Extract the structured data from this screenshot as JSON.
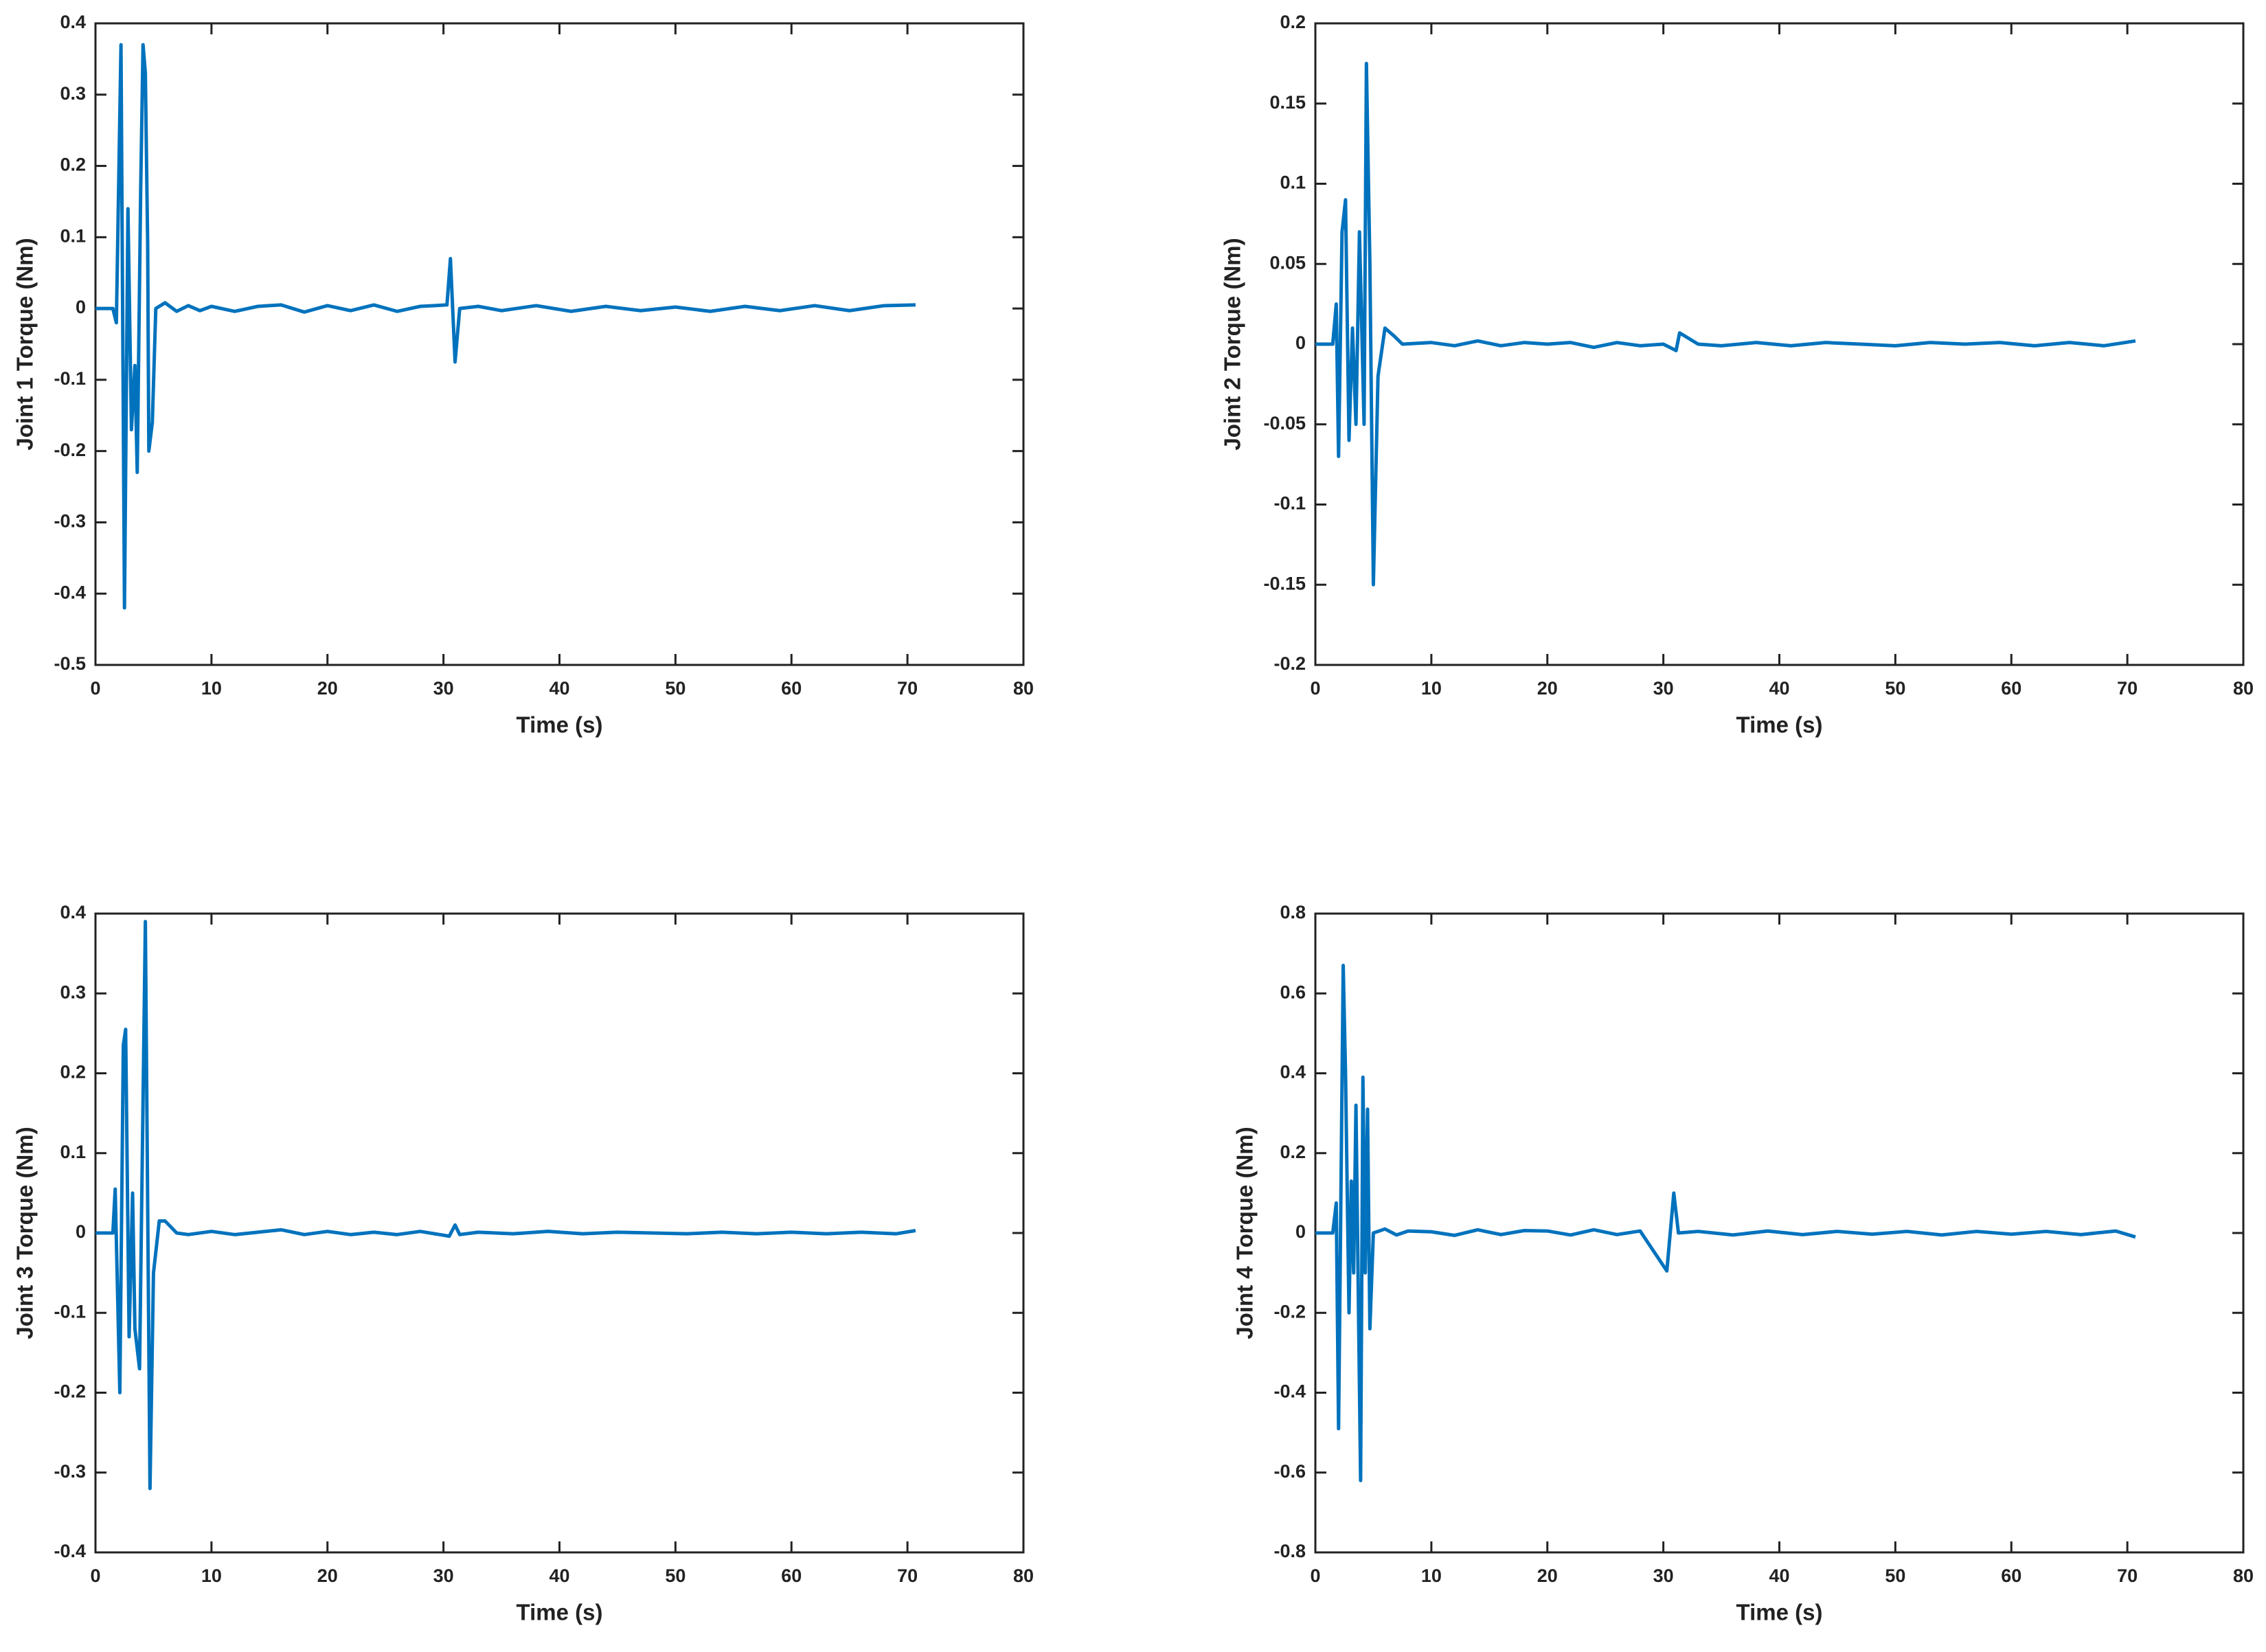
{
  "chart_data": [
    {
      "type": "line",
      "ylabel": "Joint 1 Torque (Nm)",
      "xlabel": "Time (s)",
      "color": "#0072bd",
      "xlim": [
        0,
        80
      ],
      "xticks": [
        0,
        10,
        20,
        30,
        40,
        50,
        60,
        70,
        80
      ],
      "ylim": [
        -0.5,
        0.4
      ],
      "yticks": [
        -0.5,
        -0.4,
        -0.3,
        -0.2,
        -0.1,
        0,
        0.1,
        0.2,
        0.3,
        0.4
      ],
      "x": [
        0,
        1.5,
        1.8,
        2.2,
        2.5,
        2.8,
        3.1,
        3.4,
        3.6,
        3.9,
        4.1,
        4.3,
        4.5,
        4.6,
        4.9,
        5.2,
        6,
        7,
        8,
        9,
        10,
        12,
        14,
        16,
        18,
        20,
        22,
        24,
        26,
        28,
        30.3,
        30.6,
        31,
        31.4,
        33,
        35,
        38,
        41,
        44,
        47,
        50,
        53,
        56,
        59,
        62,
        65,
        68,
        70.7
      ],
      "values": [
        0,
        0,
        -0.02,
        0.37,
        -0.42,
        0.14,
        -0.17,
        -0.08,
        -0.23,
        0.17,
        0.37,
        0.33,
        0.09,
        -0.2,
        -0.16,
        0,
        0.008,
        -0.004,
        0.004,
        -0.003,
        0.003,
        -0.004,
        0.003,
        0.005,
        -0.005,
        0.004,
        -0.003,
        0.005,
        -0.004,
        0.003,
        0.005,
        0.07,
        -0.075,
        0,
        0.003,
        -0.003,
        0.004,
        -0.004,
        0.003,
        -0.003,
        0.002,
        -0.004,
        0.003,
        -0.003,
        0.004,
        -0.003,
        0.004,
        0.005
      ]
    },
    {
      "type": "line",
      "ylabel": "Joint 2 Torque (Nm)",
      "xlabel": "Time (s)",
      "color": "#0072bd",
      "xlim": [
        0,
        80
      ],
      "xticks": [
        0,
        10,
        20,
        30,
        40,
        50,
        60,
        70,
        80
      ],
      "ylim": [
        -0.2,
        0.2
      ],
      "yticks": [
        -0.2,
        -0.15,
        -0.1,
        -0.05,
        0,
        0.05,
        0.1,
        0.15,
        0.2
      ],
      "x": [
        0,
        1.5,
        1.8,
        2.0,
        2.3,
        2.6,
        2.9,
        3.2,
        3.5,
        3.8,
        4.2,
        4.4,
        4.7,
        5.0,
        5.4,
        6,
        6.8,
        7.5,
        10,
        12,
        14,
        16,
        18,
        20,
        22,
        24,
        26,
        28,
        30,
        31.1,
        31.4,
        33,
        35,
        38,
        41,
        44,
        47,
        50,
        53,
        56,
        59,
        62,
        65,
        68,
        70.7
      ],
      "values": [
        0,
        0,
        0.025,
        -0.07,
        0.07,
        0.09,
        -0.06,
        0.01,
        -0.05,
        0.07,
        -0.05,
        0.175,
        0.05,
        -0.15,
        -0.02,
        0.01,
        0.005,
        0,
        0.001,
        -0.001,
        0.002,
        -0.001,
        0.001,
        0,
        0.001,
        -0.002,
        0.001,
        -0.001,
        0,
        -0.004,
        0.007,
        0,
        -0.001,
        0.001,
        -0.001,
        0.001,
        0,
        -0.001,
        0.001,
        0,
        0.001,
        -0.001,
        0.001,
        -0.001,
        0.002
      ]
    },
    {
      "type": "line",
      "ylabel": "Joint 3 Torque (Nm)",
      "xlabel": "Time (s)",
      "color": "#0072bd",
      "xlim": [
        0,
        80
      ],
      "xticks": [
        0,
        10,
        20,
        30,
        40,
        50,
        60,
        70,
        80
      ],
      "ylim": [
        -0.4,
        0.4
      ],
      "yticks": [
        -0.4,
        -0.3,
        -0.2,
        -0.1,
        0,
        0.1,
        0.2,
        0.3,
        0.4
      ],
      "x": [
        0,
        1.5,
        1.7,
        2.1,
        2.4,
        2.6,
        2.9,
        3.2,
        3.4,
        3.8,
        4.3,
        4.7,
        5.0,
        5.5,
        6,
        7,
        8,
        10,
        12,
        14,
        16,
        18,
        20,
        22,
        24,
        26,
        28,
        30.5,
        31,
        31.4,
        33,
        36,
        39,
        42,
        45,
        48,
        51,
        54,
        57,
        60,
        63,
        66,
        69,
        70.7
      ],
      "values": [
        0,
        0,
        0.055,
        -0.2,
        0.235,
        0.255,
        -0.13,
        0.05,
        -0.12,
        -0.17,
        0.39,
        -0.32,
        -0.05,
        0.015,
        0.015,
        0,
        -0.002,
        0.002,
        -0.002,
        0.001,
        0.004,
        -0.002,
        0.002,
        -0.002,
        0.001,
        -0.002,
        0.002,
        -0.004,
        0.01,
        -0.002,
        0.001,
        -0.001,
        0.002,
        -0.001,
        0.001,
        0,
        -0.001,
        0.001,
        -0.001,
        0.001,
        -0.001,
        0.001,
        -0.001,
        0.003
      ]
    },
    {
      "type": "line",
      "ylabel": "Joint 4 Torque (Nm)",
      "xlabel": "Time (s)",
      "color": "#0072bd",
      "xlim": [
        0,
        80
      ],
      "xticks": [
        0,
        10,
        20,
        30,
        40,
        50,
        60,
        70,
        80
      ],
      "ylim": [
        -0.8,
        0.8
      ],
      "yticks": [
        -0.8,
        -0.6,
        -0.4,
        -0.2,
        0,
        0.2,
        0.4,
        0.6,
        0.8
      ],
      "x": [
        0,
        1.5,
        1.8,
        2.0,
        2.4,
        2.6,
        2.9,
        3.1,
        3.3,
        3.5,
        3.9,
        4.1,
        4.3,
        4.5,
        4.7,
        5.0,
        6,
        7,
        8,
        10,
        12,
        14,
        16,
        18,
        20,
        22,
        24,
        26,
        28,
        30.3,
        30.9,
        31.3,
        33,
        36,
        39,
        42,
        45,
        48,
        51,
        54,
        57,
        60,
        63,
        66,
        69,
        70.7
      ],
      "values": [
        0,
        0,
        0.075,
        -0.49,
        0.67,
        0.4,
        -0.2,
        0.13,
        -0.1,
        0.32,
        -0.62,
        0.39,
        -0.1,
        0.31,
        -0.24,
        0,
        0.01,
        -0.005,
        0.005,
        0.003,
        -0.006,
        0.008,
        -0.004,
        0.006,
        0.005,
        -0.005,
        0.008,
        -0.004,
        0.005,
        -0.095,
        0.1,
        0,
        0.004,
        -0.005,
        0.005,
        -0.004,
        0.004,
        -0.003,
        0.004,
        -0.005,
        0.004,
        -0.003,
        0.004,
        -0.004,
        0.005,
        -0.01
      ]
    }
  ]
}
